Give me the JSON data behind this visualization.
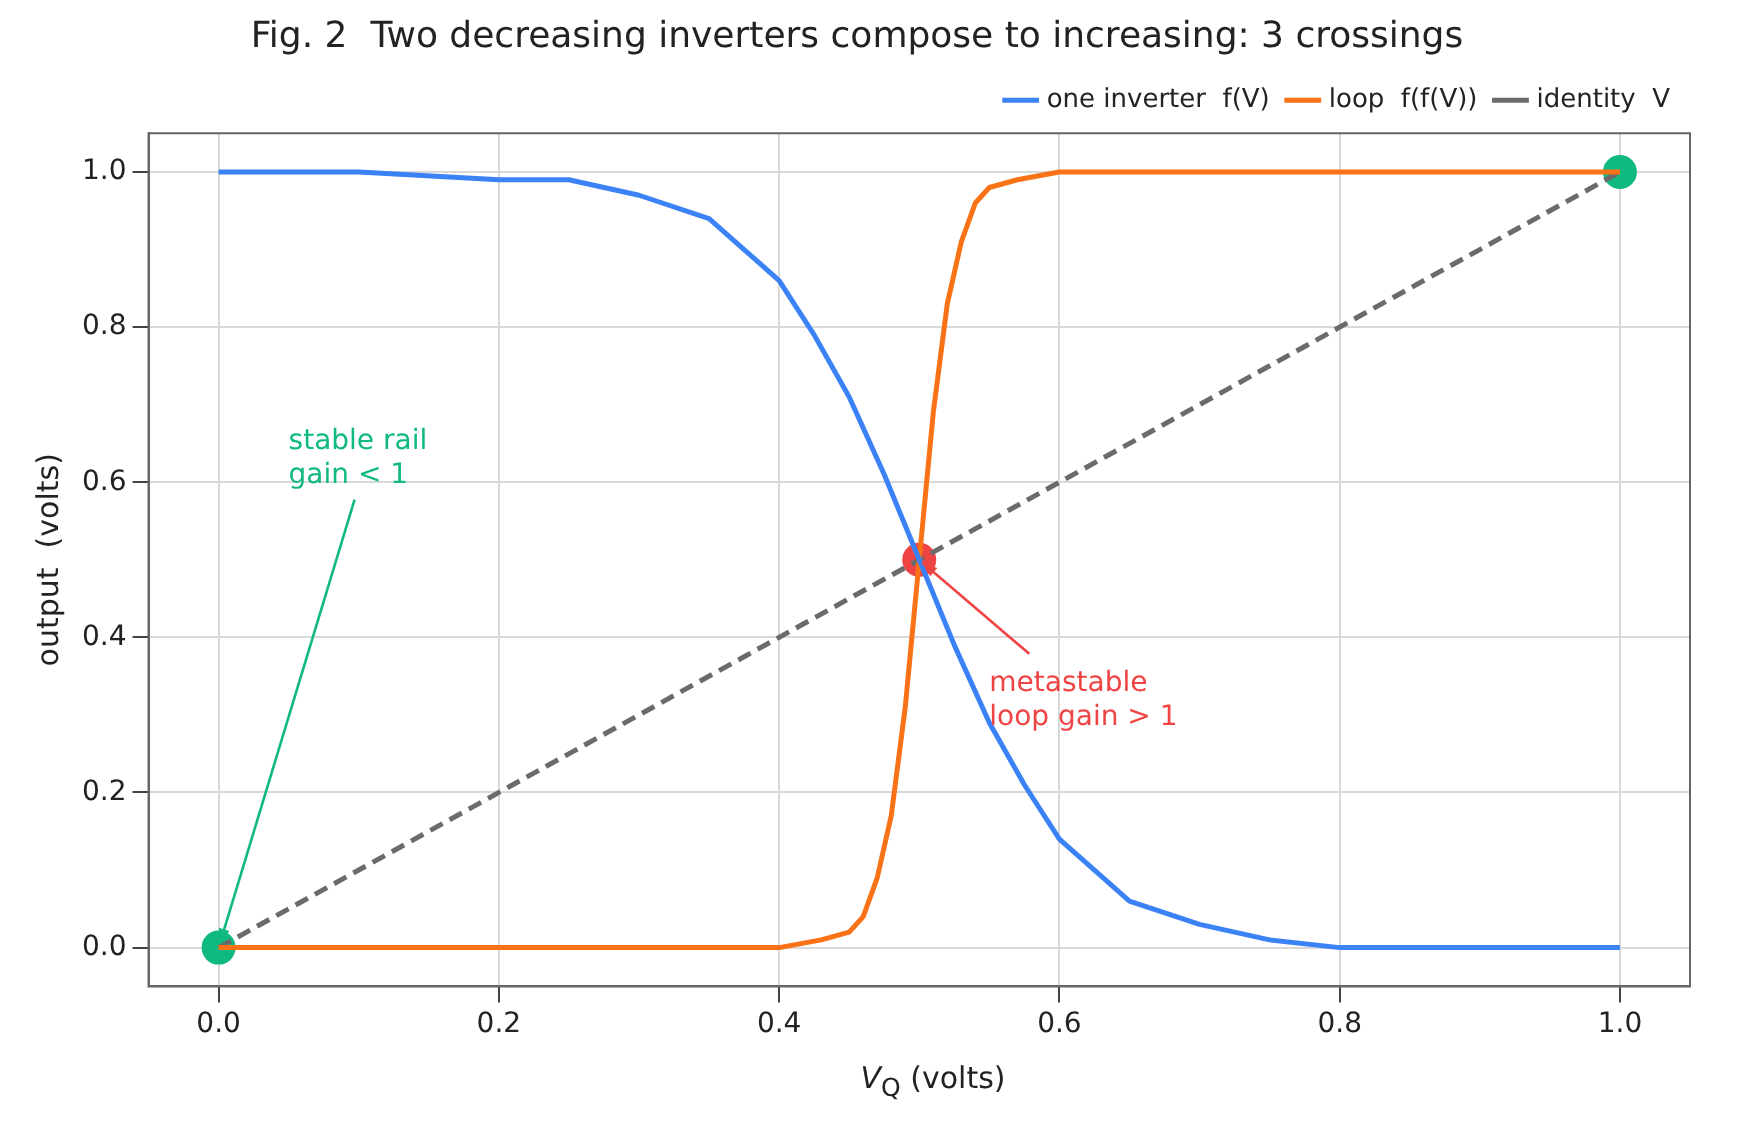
{
  "chart_data": {
    "type": "line",
    "title": "Fig. 2  Two decreasing inverters compose to increasing: 3 crossings",
    "xlabel": "V$_{Q}$  (volts)",
    "ylabel": "output  (volts)",
    "xlim": [
      -0.05,
      1.05
    ],
    "xticks": [
      {
        "value": 0,
        "label": "0.0"
      },
      0.2,
      0.4,
      0.6,
      0.8,
      {
        "value": 1,
        "label": "1.0"
      }
    ],
    "ylim": [
      -0.05,
      1.05
    ],
    "yticks": [
      {
        "value": 0,
        "label": "0.0"
      },
      0.2,
      0.4,
      0.6,
      0.8,
      {
        "value": 1,
        "label": "1.0"
      }
    ],
    "grid": true,
    "legend": "top right",
    "series": [
      {
        "name": "one inverter  f(V)",
        "color": "#3b82f6",
        "marker": "none",
        "line_style": "solid",
        "x": [
          0,
          0.1,
          0.2,
          0.25,
          0.3,
          0.35,
          0.375,
          0.4,
          0.425,
          0.45,
          0.475,
          0.5,
          0.525,
          0.55,
          0.575,
          0.6,
          0.625,
          0.65,
          0.7,
          0.75,
          0.8,
          0.9,
          1.0
        ],
        "values": [
          1.0,
          1.0,
          0.99,
          0.99,
          0.97,
          0.94,
          0.9,
          0.86,
          0.79,
          0.71,
          0.61,
          0.5,
          0.39,
          0.29,
          0.21,
          0.14,
          0.1,
          0.06,
          0.03,
          0.01,
          0.0,
          0.0,
          0.0
        ]
      },
      {
        "name": "loop  f(f(V))",
        "color": "#f97316",
        "marker": "none",
        "line_style": "solid",
        "x": [
          0,
          0.3,
          0.4,
          0.43,
          0.45,
          0.46,
          0.47,
          0.48,
          0.49,
          0.5,
          0.51,
          0.52,
          0.53,
          0.54,
          0.55,
          0.57,
          0.6,
          0.7,
          1.0
        ],
        "values": [
          0.0,
          0.0,
          0.0,
          0.01,
          0.02,
          0.04,
          0.09,
          0.17,
          0.31,
          0.5,
          0.69,
          0.83,
          0.91,
          0.96,
          0.98,
          0.99,
          1.0,
          1.0,
          1.0
        ]
      },
      {
        "name": "identity  V",
        "color": "#6b6b6b",
        "marker": "none",
        "line_style": "dashed",
        "x": [
          0,
          1
        ],
        "values": [
          0,
          1
        ]
      },
      {
        "type": "scatter",
        "color": "#10b981",
        "marker": "circle",
        "x": [
          0,
          1
        ],
        "values": [
          0,
          1
        ]
      },
      {
        "type": "scatter",
        "color": "#ef4444",
        "marker": "circle",
        "x": [
          0.5
        ],
        "values": [
          0.5
        ]
      }
    ],
    "annotations": [
      {
        "text": "stable rail\ngain < 1",
        "x": 0,
        "y": 0
      },
      {
        "text": "metastable\nloop gain > 1",
        "x": 0.5,
        "y": 0.5
      }
    ]
  }
}
